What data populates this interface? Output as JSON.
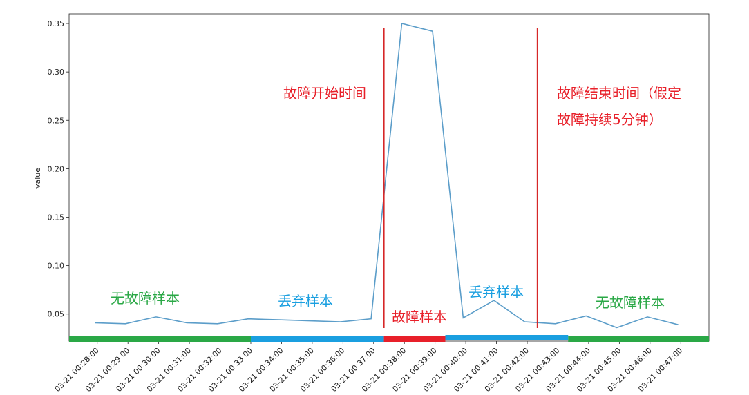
{
  "chart_data": {
    "type": "line",
    "ylabel": "value",
    "ylim": [
      0.022,
      0.36
    ],
    "yticks": [
      0.05,
      0.1,
      0.15,
      0.2,
      0.25,
      0.3,
      0.35
    ],
    "ytick_labels": [
      "0.05",
      "0.10",
      "0.15",
      "0.20",
      "0.25",
      "0.30",
      "0.35"
    ],
    "x": [
      "03-21 00:28:00",
      "03-21 00:29:00",
      "03-21 00:30:00",
      "03-21 00:31:00",
      "03-21 00:32:00",
      "03-21 00:33:00",
      "03-21 00:34:00",
      "03-21 00:35:00",
      "03-21 00:36:00",
      "03-21 00:37:00",
      "03-21 00:38:00",
      "03-21 00:39:00",
      "03-21 00:40:00",
      "03-21 00:41:00",
      "03-21 00:42:00",
      "03-21 00:43:00",
      "03-21 00:44:00",
      "03-21 00:45:00",
      "03-21 00:46:00",
      "03-21 00:47:00"
    ],
    "x_plot_range": [
      "03-21 00:27:05",
      "03-21 00:47:55"
    ],
    "series": [
      {
        "color": "#5b9dc9",
        "points": [
          {
            "x": "03-21 00:27:55",
            "y": 0.041
          },
          {
            "x": "03-21 00:28:55",
            "y": 0.04
          },
          {
            "x": "03-21 00:29:55",
            "y": 0.047
          },
          {
            "x": "03-21 00:30:55",
            "y": 0.041
          },
          {
            "x": "03-21 00:31:55",
            "y": 0.04
          },
          {
            "x": "03-21 00:32:55",
            "y": 0.045
          },
          {
            "x": "03-21 00:33:55",
            "y": 0.044
          },
          {
            "x": "03-21 00:34:55",
            "y": 0.043
          },
          {
            "x": "03-21 00:35:55",
            "y": 0.042
          },
          {
            "x": "03-21 00:36:55",
            "y": 0.045
          },
          {
            "x": "03-21 00:37:55",
            "y": 0.35
          },
          {
            "x": "03-21 00:38:55",
            "y": 0.342
          },
          {
            "x": "03-21 00:39:55",
            "y": 0.046
          },
          {
            "x": "03-21 00:40:55",
            "y": 0.064
          },
          {
            "x": "03-21 00:41:55",
            "y": 0.042
          },
          {
            "x": "03-21 00:42:55",
            "y": 0.04
          },
          {
            "x": "03-21 00:43:55",
            "y": 0.048
          },
          {
            "x": "03-21 00:44:55",
            "y": 0.036
          },
          {
            "x": "03-21 00:45:55",
            "y": 0.047
          },
          {
            "x": "03-21 00:46:55",
            "y": 0.039
          }
        ]
      }
    ],
    "vlines": [
      {
        "x": "03-21 00:37:20",
        "color": "#d62728",
        "label": "故障开始时间"
      },
      {
        "x": "03-21 00:42:20",
        "color": "#d62728",
        "label": "故障结束时间（假定\n故障持续5分钟）"
      }
    ],
    "sample_bands": [
      {
        "start": "03-21 00:27:05",
        "end": "03-21 00:33:00",
        "color": "#2aa846",
        "label": "无故障样本"
      },
      {
        "start": "03-21 00:33:00",
        "end": "03-21 00:37:20",
        "color": "#1a9fe0",
        "label": "丢弃样本"
      },
      {
        "start": "03-21 00:37:20",
        "end": "03-21 00:39:20",
        "color": "#e8202a",
        "label": "故障样本"
      },
      {
        "start": "03-21 00:39:20",
        "end": "03-21 00:43:20",
        "color": "#1a9fe0",
        "label": "丢弃样本"
      },
      {
        "start": "03-21 00:43:20",
        "end": "03-21 00:47:55",
        "color": "#2aa846",
        "label": "无故障样本"
      }
    ]
  },
  "colors": {
    "red_text": "#e8202a",
    "blue_text": "#1a9fe0",
    "green_text": "#2aa846"
  }
}
